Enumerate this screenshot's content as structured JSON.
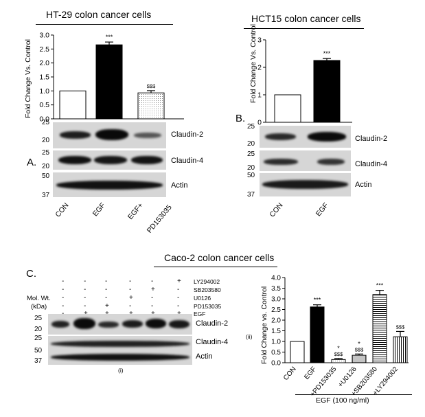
{
  "panelA": {
    "letter": "A.",
    "title": "HT-29 colon cancer cells",
    "ylabel": "Fold Change Vs. Control",
    "yticks": [
      "0.0",
      "0.5",
      "1.0",
      "1.5",
      "2.0",
      "2.5",
      "3.0"
    ],
    "bars": [
      {
        "label": "CON",
        "value": 1.0,
        "err": 0.0,
        "sig": "",
        "fill": "white"
      },
      {
        "label": "EGF",
        "value": 2.65,
        "err": 0.1,
        "sig": "***",
        "fill": "black"
      },
      {
        "label": "EGF+ PD153035",
        "value": 0.93,
        "err": 0.08,
        "sig": "$$$",
        "fill": "dotted"
      }
    ],
    "blots": [
      {
        "name": "Claudin-2",
        "markers": [
          "25",
          "20"
        ]
      },
      {
        "name": "Claudin-4",
        "markers": [
          "25",
          "20"
        ]
      },
      {
        "name": "Actin",
        "markers": [
          "50",
          "37"
        ]
      }
    ],
    "lanes": [
      "CON",
      "EGF",
      "EGF+",
      "PD153035"
    ]
  },
  "panelB": {
    "letter": "B.",
    "title": "HCT15 colon cancer cells",
    "ylabel": "Fold Change Vs. Control",
    "yticks": [
      "0",
      "1",
      "2",
      "3"
    ],
    "bars": [
      {
        "label": "CON",
        "value": 1.0,
        "err": 0.0,
        "sig": "",
        "fill": "white"
      },
      {
        "label": "EGF",
        "value": 2.25,
        "err": 0.07,
        "sig": "***",
        "fill": "black"
      }
    ],
    "blots": [
      {
        "name": "Claudin-2",
        "markers": [
          "25",
          "20"
        ]
      },
      {
        "name": "Claudin-4",
        "markers": [
          "25",
          "20"
        ]
      },
      {
        "name": "Actin",
        "markers": [
          "50",
          "37"
        ]
      }
    ],
    "lanes": [
      "CON",
      "EGF"
    ]
  },
  "panelC": {
    "letter": "C.",
    "title": "Caco-2 colon cancer cells",
    "treatments": [
      {
        "name": "LY294002",
        "signs": [
          "-",
          "-",
          "-",
          "-",
          "-",
          "+"
        ]
      },
      {
        "name": "SB203580",
        "signs": [
          "-",
          "-",
          "-",
          "-",
          "+",
          "-"
        ]
      },
      {
        "name": "U0126",
        "signs": [
          "-",
          "-",
          "-",
          "+",
          "-",
          "-"
        ]
      },
      {
        "name": "PD153035",
        "signs": [
          "-",
          "-",
          "+",
          "-",
          "-",
          "-"
        ]
      },
      {
        "name": "EGF",
        "signs": [
          "-",
          "+",
          "+",
          "+",
          "+",
          "+"
        ]
      }
    ],
    "molwt_label": "Mol. Wt.",
    "kda_label": "(kDa)",
    "blots": [
      {
        "name": "Claudin-2",
        "markers": [
          "25",
          "20"
        ]
      },
      {
        "name": "Claudin-4",
        "markers": [
          "25"
        ]
      },
      {
        "name": "Actin",
        "markers": [
          "50",
          "37"
        ]
      }
    ],
    "sub_i": "(i)",
    "sub_ii": "(ii)",
    "ylabel": "Fold Change vs. Control",
    "yticks": [
      "0.0",
      "0.5",
      "1.0",
      "1.5",
      "2.0",
      "2.5",
      "3.0",
      "3.5",
      "4.0"
    ],
    "bars": [
      {
        "label": "CON",
        "value": 1.0,
        "err": 0.0,
        "sig": "",
        "sig2": "",
        "fill": "white"
      },
      {
        "label": "EGF",
        "value": 2.62,
        "err": 0.1,
        "sig": "***",
        "sig2": "",
        "fill": "black"
      },
      {
        "label": "+PD153035",
        "value": 0.15,
        "err": 0.05,
        "sig": "*",
        "sig2": "$$$",
        "fill": "dotted"
      },
      {
        "label": "+U0126",
        "value": 0.35,
        "err": 0.06,
        "sig": "*",
        "sig2": "$$$",
        "fill": "dense"
      },
      {
        "label": "+SB203580",
        "value": 3.2,
        "err": 0.2,
        "sig": "***",
        "sig2": "",
        "fill": "hlines"
      },
      {
        "label": "+LY294002",
        "value": 1.22,
        "err": 0.25,
        "sig": "$$$",
        "sig2": "",
        "fill": "vlines"
      }
    ],
    "egf_label": "EGF (100 ng/ml)"
  }
}
